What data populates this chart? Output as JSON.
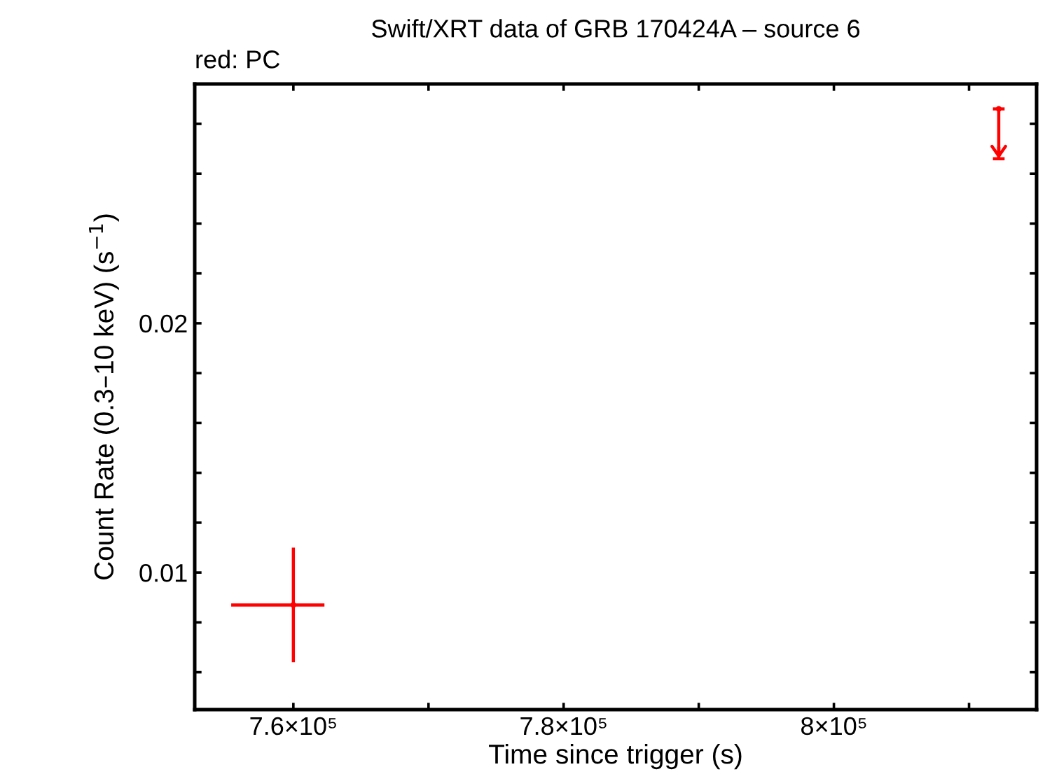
{
  "chart_data": {
    "type": "scatter",
    "title": "Swift/XRT data of GRB 170424A – source 6",
    "xlabel": "Time since trigger (s)",
    "ylabel": "Count Rate (0.3–10 keV) (s$^{−1}$)",
    "annotations": [
      "red: PC"
    ],
    "series": [
      {
        "color": "#ff0000",
        "x": [
          760000,
          812200
        ],
        "values": [
          0.0087,
          0.0286
        ],
        "errors": [
          [
            0.0064,
            0.011
          ],
          [
            0.0266,
            0.0286
          ]
        ],
        "xerrors": [
          [
            755400,
            762300
          ],
          null
        ]
      }
    ],
    "marker": "none",
    "xlim": [
      752700,
      815000
    ],
    "ylim": [
      0.0045,
      0.0296
    ],
    "xticks": [
      {
        "value": 760000,
        "label": "7.6×10⁵"
      },
      {
        "value": 770000,
        "label": null
      },
      {
        "value": 780000,
        "label": "7.8×10⁵"
      },
      {
        "value": 790000,
        "label": null
      },
      {
        "value": 800000,
        "label": "8×10⁵"
      },
      {
        "value": 810000,
        "label": null
      }
    ],
    "yticks": [
      {
        "value": 0.006,
        "label": null
      },
      {
        "value": 0.008,
        "label": null
      },
      {
        "value": 0.01,
        "label": "0.01"
      },
      {
        "value": 0.012,
        "label": null
      },
      {
        "value": 0.014,
        "label": null
      },
      {
        "value": 0.016,
        "label": null
      },
      {
        "value": 0.018,
        "label": null
      },
      {
        "value": 0.02,
        "label": "0.02"
      },
      {
        "value": 0.022,
        "label": null
      },
      {
        "value": 0.024,
        "label": null
      },
      {
        "value": 0.026,
        "label": null
      },
      {
        "value": 0.028,
        "label": null
      }
    ],
    "grid": false
  }
}
